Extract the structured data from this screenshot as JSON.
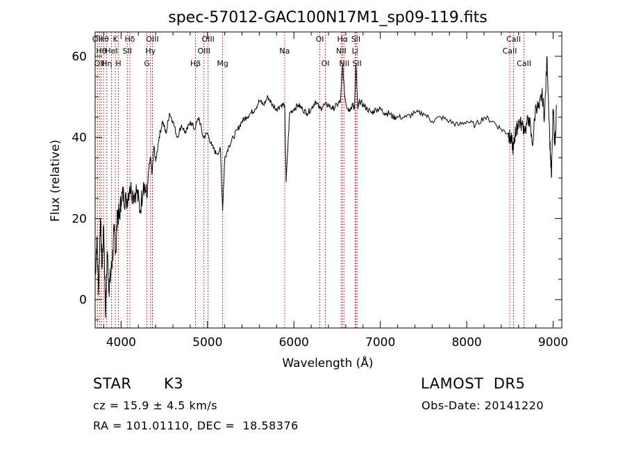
{
  "chart_data": {
    "type": "line",
    "title": "spec-57012-GAC100N17M1_sp09-119.fits",
    "xlabel": "Wavelength (Å)",
    "ylabel": "Flux (relative)",
    "xlim": [
      3700,
      9100
    ],
    "ylim": [
      -7,
      66
    ],
    "x_ticks": [
      4000,
      5000,
      6000,
      7000,
      8000,
      9000
    ],
    "y_ticks": [
      0,
      20,
      40,
      60
    ],
    "grid": false,
    "line_color": "#000000",
    "line_marker_color": "#cc0000",
    "series": [
      {
        "x": [
          3700,
          3720,
          3740,
          3760,
          3780,
          3800,
          3820,
          3840,
          3860,
          3880,
          3900,
          3920,
          3940,
          3960,
          3980,
          4000,
          4030,
          4060,
          4100,
          4140,
          4180,
          4220,
          4260,
          4300,
          4320,
          4340,
          4360,
          4380,
          4400,
          4440,
          4480,
          4520,
          4560,
          4600,
          4650,
          4700,
          4750,
          4800,
          4850,
          4900,
          4950,
          5000,
          5050,
          5100,
          5150,
          5175,
          5200,
          5250,
          5300,
          5350,
          5400,
          5450,
          5500,
          5550,
          5600,
          5650,
          5700,
          5750,
          5800,
          5850,
          5893,
          5910,
          5950,
          6000,
          6050,
          6100,
          6150,
          6200,
          6250,
          6300,
          6350,
          6400,
          6450,
          6500,
          6540,
          6563,
          6590,
          6620,
          6650,
          6680,
          6700,
          6717,
          6740,
          6760,
          6800,
          6850,
          6900,
          6950,
          7000,
          7050,
          7100,
          7150,
          7200,
          7300,
          7400,
          7500,
          7600,
          7700,
          7800,
          7900,
          8000,
          8100,
          8200,
          8300,
          8400,
          8480,
          8500,
          8520,
          8540,
          8560,
          8580,
          8600,
          8640,
          8680,
          8720,
          8760,
          8800,
          8840,
          8870,
          8900,
          8930,
          8960,
          8980,
          9000,
          9020,
          9040
        ],
        "y": [
          5,
          15,
          2,
          20,
          8,
          18,
          -4,
          12,
          3,
          6,
          10,
          17,
          12,
          22,
          20,
          25,
          26,
          24,
          28,
          26,
          27,
          22,
          29,
          25,
          32,
          35,
          31,
          38,
          34,
          40,
          44,
          41,
          46,
          44,
          40,
          43,
          41,
          44,
          42,
          45,
          40,
          41,
          38,
          36,
          37,
          22,
          35,
          38,
          40,
          42,
          44,
          45,
          46,
          47,
          49,
          48,
          50,
          48,
          47,
          48,
          48,
          29,
          46,
          47,
          48,
          47,
          46,
          47,
          49,
          47,
          48,
          48,
          47,
          48,
          49,
          58,
          50,
          47,
          47,
          48,
          47,
          58,
          47,
          49,
          48,
          47,
          46,
          47,
          47,
          46,
          46,
          45,
          45,
          45,
          46,
          46,
          44,
          45,
          44,
          43,
          44,
          43,
          45,
          44,
          42,
          41,
          40,
          39,
          37,
          41,
          42,
          44,
          43,
          42,
          45,
          38,
          48,
          47,
          51,
          45,
          60,
          40,
          30,
          47,
          38,
          48
        ]
      }
    ],
    "lines": [
      {
        "wl": 3727,
        "row": 0,
        "label": "OII"
      },
      {
        "wl": 3750,
        "row": 2,
        "label": "OII"
      },
      {
        "wl": 3771,
        "row": 1,
        "label": "Hθ"
      },
      {
        "wl": 3798,
        "row": 0,
        "label": "Hθ"
      },
      {
        "wl": 3835,
        "row": 2,
        "label": "Hη"
      },
      {
        "wl": 3889,
        "row": 1,
        "label": "HeI"
      },
      {
        "wl": 3934,
        "row": 0,
        "label": "K"
      },
      {
        "wl": 3969,
        "row": 2,
        "label": "H"
      },
      {
        "wl": 4072,
        "row": 1,
        "label": "SII"
      },
      {
        "wl": 4102,
        "row": 0,
        "label": "Hδ"
      },
      {
        "wl": 4300,
        "row": 2,
        "label": "G"
      },
      {
        "wl": 4341,
        "row": 1,
        "label": "Hγ"
      },
      {
        "wl": 4363,
        "row": 0,
        "label": "OIII"
      },
      {
        "wl": 4861,
        "row": 2,
        "label": "Hβ"
      },
      {
        "wl": 4959,
        "row": 1,
        "label": "OIII"
      },
      {
        "wl": 5007,
        "row": 0,
        "label": "OIII"
      },
      {
        "wl": 5175,
        "row": 2,
        "label": "Mg"
      },
      {
        "wl": 5893,
        "row": 1,
        "label": "Na"
      },
      {
        "wl": 6300,
        "row": 0,
        "label": "OI"
      },
      {
        "wl": 6364,
        "row": 2,
        "label": "OI"
      },
      {
        "wl": 6548,
        "row": 1,
        "label": "NII"
      },
      {
        "wl": 6563,
        "row": 0,
        "label": "Hα"
      },
      {
        "wl": 6583,
        "row": 2,
        "label": "NII"
      },
      {
        "wl": 6707,
        "row": 1,
        "label": "Li"
      },
      {
        "wl": 6717,
        "row": 0,
        "label": "SII"
      },
      {
        "wl": 6731,
        "row": 2,
        "label": "SII"
      },
      {
        "wl": 8498,
        "row": 1,
        "label": "CaII"
      },
      {
        "wl": 8542,
        "row": 0,
        "label": "CaII"
      },
      {
        "wl": 8662,
        "row": 2,
        "label": "CaII"
      }
    ]
  },
  "info": {
    "class_label": "STAR",
    "subclass": "K3",
    "survey": "LAMOST  DR5",
    "cz": "cz = 15.9 ± 4.5 km/s",
    "obs_date": "Obs-Date: 20141220",
    "coords": "RA = 101.01110, DEC =  18.58376"
  }
}
